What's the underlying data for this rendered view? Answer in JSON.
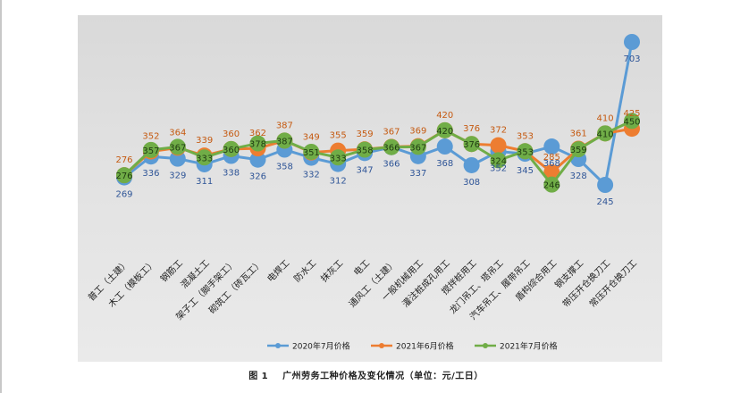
{
  "caption": {
    "figure_no": "图 1",
    "text": "广州劳务工种价格及变化情况（单位：元/工日）"
  },
  "colors": {
    "s2020": "#5b9bd5",
    "s2021_6": "#ed7d31",
    "s2021_7": "#70ad47"
  },
  "chart_data": {
    "type": "line",
    "categories": [
      "普工（土建）",
      "木工（模板工）",
      "钢筋工",
      "混凝土工",
      "架子工（脚手架工）",
      "砌筑工（砖瓦工）",
      "电焊工",
      "防水工",
      "抹灰工",
      "电工",
      "通风工（土建）",
      "一般机械用工",
      "灌注桩成孔用工",
      "搅拌桩用工",
      "龙门吊工、塔吊工",
      "汽车吊工、履带吊工",
      "盾构综合用工",
      "钢支撑工",
      "带压开仓换刀工",
      "常压开仓换刀工"
    ],
    "series": [
      {
        "name": "2020年7月价格",
        "values": [
          269,
          336,
          329,
          311,
          338,
          326,
          358,
          332,
          312,
          347,
          366,
          337,
          368,
          308,
          352,
          345,
          368,
          328,
          245,
          703
        ]
      },
      {
        "name": "2021年6月价格",
        "values": [
          276,
          352,
          364,
          339,
          360,
          362,
          387,
          349,
          355,
          359,
          367,
          369,
          420,
          376,
          372,
          353,
          285,
          361,
          410,
          425
        ]
      },
      {
        "name": "2021年7月价格",
        "values": [
          276,
          357,
          367,
          333,
          360,
          378,
          387,
          351,
          333,
          358,
          366,
          367,
          420,
          376,
          324,
          353,
          246,
          359,
          410,
          450
        ]
      }
    ],
    "legend_position": "bottom",
    "grid": false,
    "data_labels": true
  }
}
